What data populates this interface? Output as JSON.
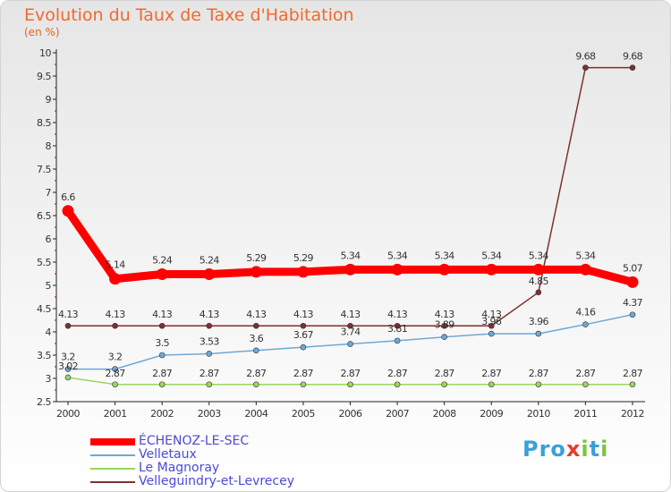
{
  "title": "Evolution du Taux de Taxe d'Habitation",
  "subtitle": "(en %)",
  "logo": {
    "p1": "Pro",
    "x": "x",
    "p2": "i",
    "t": "t",
    "p3": "i"
  },
  "chart_data": {
    "type": "line",
    "ylim": [
      2.5,
      10
    ],
    "yticks": [
      "2.5",
      "3",
      "3.5",
      "4",
      "4.5",
      "5",
      "5.5",
      "6",
      "6.5",
      "7",
      "7.5",
      "8",
      "8.5",
      "9",
      "9.5",
      "10"
    ],
    "x": [
      "2000",
      "2001",
      "2002",
      "2003",
      "2004",
      "2005",
      "2006",
      "2007",
      "2008",
      "2009",
      "2010",
      "2011",
      "2012"
    ],
    "grid": false,
    "legend_position": "bottom-left",
    "series": [
      {
        "name": "ÉCHENOZ-LE-SEC",
        "color": "#ff0000",
        "values": [
          6.6,
          5.14,
          5.24,
          5.24,
          5.29,
          5.29,
          5.34,
          5.34,
          5.34,
          5.34,
          5.34,
          5.34,
          5.07
        ],
        "labels": [
          "6.6",
          "5.14",
          "5.24",
          "5.24",
          "5.29",
          "5.29",
          "5.34",
          "5.34",
          "5.34",
          "5.34",
          "5.34",
          "5.34",
          "5.07"
        ]
      },
      {
        "name": "Velletaux",
        "color": "#6fa8d6",
        "values": [
          3.2,
          3.2,
          3.5,
          3.53,
          3.6,
          3.67,
          3.74,
          3.81,
          3.89,
          3.96,
          3.96,
          4.16,
          4.37
        ],
        "labels": [
          "3.2",
          "3.2",
          "3.5",
          "3.53",
          "3.6",
          "3.67",
          "3.74",
          "3.81",
          "3.89",
          "3.96",
          "3.96",
          "4.16",
          "4.37"
        ]
      },
      {
        "name": "Le Magnoray",
        "color": "#99d65c",
        "values": [
          3.02,
          2.87,
          2.87,
          2.87,
          2.87,
          2.87,
          2.87,
          2.87,
          2.87,
          2.87,
          2.87,
          2.87,
          2.87
        ],
        "labels": [
          "3.02",
          "2.87",
          "2.87",
          "2.87",
          "2.87",
          "2.87",
          "2.87",
          "2.87",
          "2.87",
          "2.87",
          "2.87",
          "2.87",
          "2.87"
        ]
      },
      {
        "name": "Velleguindry-et-Levrecey",
        "color": "#7f2f2f",
        "values": [
          4.13,
          4.13,
          4.13,
          4.13,
          4.13,
          4.13,
          4.13,
          4.13,
          4.13,
          4.13,
          4.85,
          9.68,
          9.68
        ],
        "labels": [
          "4.13",
          "4.13",
          "4.13",
          "4.13",
          "4.13",
          "4.13",
          "4.13",
          "4.13",
          "4.13",
          "4.13",
          "4.85",
          "9.68",
          "9.68"
        ]
      }
    ]
  }
}
